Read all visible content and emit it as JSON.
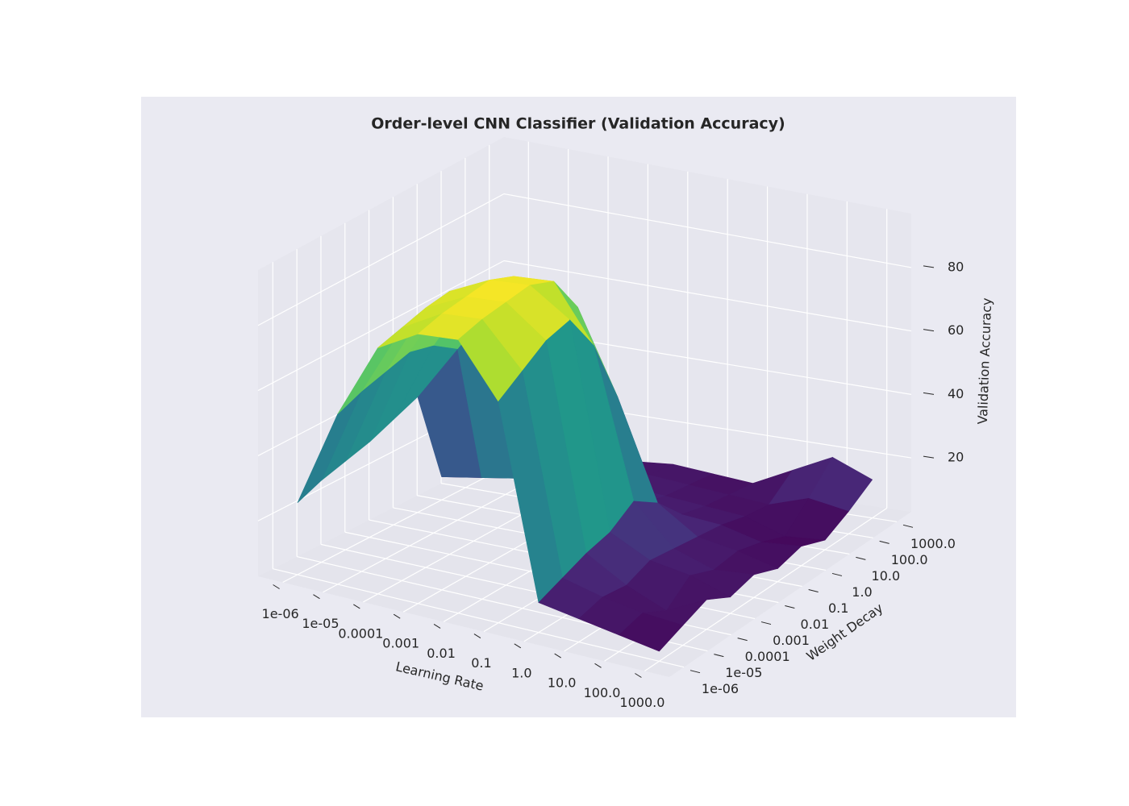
{
  "chart_data": {
    "type": "surface",
    "title": "Order-level CNN Classifier (Validation Accuracy)",
    "x_label": "Learning Rate",
    "y_label": "Weight Decay",
    "z_label": "Validation Accuracy",
    "x": [
      "1e-06",
      "1e-05",
      "0.0001",
      "0.001",
      "0.01",
      "0.1",
      "1.0",
      "10.0",
      "100.0",
      "1000.0"
    ],
    "y": [
      "1e-06",
      "1e-05",
      "0.0001",
      "0.001",
      "0.01",
      "0.1",
      "1.0",
      "10.0",
      "100.0",
      "1000.0"
    ],
    "values": [
      [
        25,
        28,
        30,
        32,
        35,
        38,
        10,
        9,
        8,
        8
      ],
      [
        55,
        58,
        60,
        62,
        60,
        55,
        12,
        10,
        9,
        8
      ],
      [
        78,
        80,
        82,
        83,
        80,
        72,
        14,
        11,
        10,
        9
      ],
      [
        85,
        87,
        88,
        89,
        86,
        78,
        15,
        12,
        10,
        9
      ],
      [
        86,
        88,
        89,
        90,
        87,
        75,
        14,
        12,
        11,
        10
      ],
      [
        70,
        75,
        80,
        82,
        70,
        50,
        13,
        11,
        10,
        9
      ],
      [
        12,
        15,
        18,
        20,
        25,
        20,
        12,
        10,
        9,
        8
      ],
      [
        10,
        12,
        11,
        14,
        13,
        12,
        11,
        9,
        8,
        14
      ],
      [
        8,
        10,
        6,
        12,
        9,
        10,
        8,
        5,
        12,
        20
      ],
      [
        6,
        9,
        12,
        8,
        10,
        7,
        9,
        6,
        10,
        15
      ]
    ],
    "zlim": [
      3,
      97
    ],
    "zticks": [
      20,
      40,
      60,
      80
    ],
    "colormap": "viridis",
    "grid": true
  }
}
